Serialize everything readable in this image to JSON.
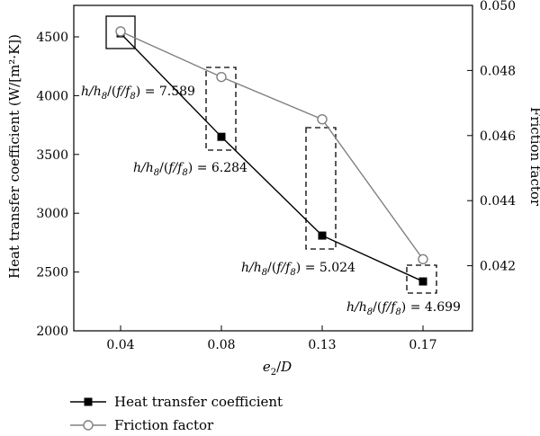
{
  "chart_data": {
    "type": "line",
    "categories": [
      "0.04",
      "0.08",
      "0.13",
      "0.17"
    ],
    "xlabel": "e₂/D",
    "ylabel": "Heat transfer coefficient (W/[m²·K])",
    "y2label": "Friction factor",
    "ylim": [
      2000,
      4800
    ],
    "yticks": [
      2000,
      2500,
      3000,
      3500,
      4000,
      4500
    ],
    "y2lim": [
      0.04,
      0.05
    ],
    "y2ticks": [
      "0.042",
      "0.044",
      "0.046",
      "0.048",
      "0.050"
    ],
    "grid": false,
    "legend_position": "bottom-left",
    "series": [
      {
        "name": "Heat transfer coefficient",
        "axis": "left",
        "marker": "filled-square",
        "color": "#000000",
        "values": [
          4530,
          3650,
          2810,
          2420
        ]
      },
      {
        "name": "Friction factor",
        "axis": "right",
        "marker": "open-circle",
        "color": "#808080",
        "values": [
          0.0492,
          0.0478,
          0.0465,
          0.0422
        ]
      }
    ],
    "annotations": [
      "h/h₈/(f/f₈) = 7.589",
      "h/h₈/(f/f₈) = 6.284",
      "h/h₈/(f/f₈) = 5.024",
      "h/h₈/(f/f₈) = 4.699"
    ]
  }
}
